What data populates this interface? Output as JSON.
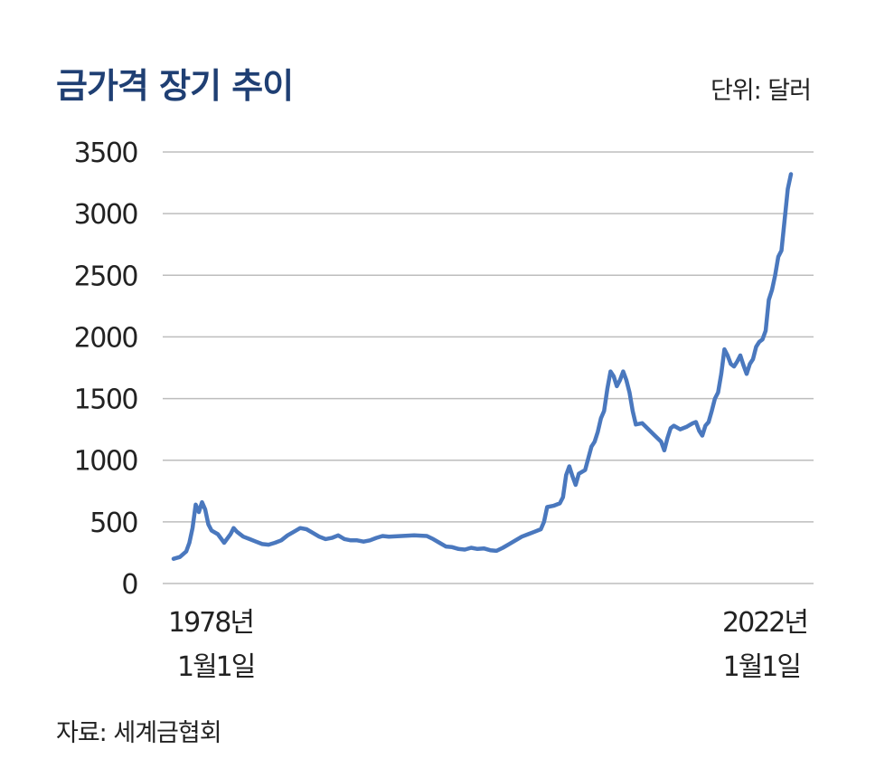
{
  "header": {
    "title": "금가격 장기 추이",
    "unit": "단위: 달러"
  },
  "footer": {
    "source": "자료: 세계금협회"
  },
  "chart_data": {
    "type": "line",
    "title": "금가격 장기 추이",
    "ylim": [
      0,
      3500
    ],
    "yticks": [
      0,
      500,
      1000,
      1500,
      2000,
      2500,
      3000,
      3500
    ],
    "grid": true,
    "x_labels": {
      "start": [
        "1978년",
        "1월1일"
      ],
      "end": [
        "2022년",
        "1월1일"
      ]
    },
    "series": [
      {
        "color": "#4a78be",
        "points": [
          [
            0.0,
            200
          ],
          [
            0.01,
            215
          ],
          [
            0.02,
            260
          ],
          [
            0.025,
            330
          ],
          [
            0.03,
            450
          ],
          [
            0.035,
            640
          ],
          [
            0.04,
            580
          ],
          [
            0.045,
            660
          ],
          [
            0.05,
            600
          ],
          [
            0.055,
            480
          ],
          [
            0.06,
            430
          ],
          [
            0.07,
            400
          ],
          [
            0.08,
            330
          ],
          [
            0.09,
            400
          ],
          [
            0.095,
            450
          ],
          [
            0.1,
            420
          ],
          [
            0.11,
            380
          ],
          [
            0.12,
            360
          ],
          [
            0.13,
            340
          ],
          [
            0.14,
            320
          ],
          [
            0.15,
            315
          ],
          [
            0.16,
            330
          ],
          [
            0.17,
            350
          ],
          [
            0.18,
            390
          ],
          [
            0.19,
            420
          ],
          [
            0.2,
            450
          ],
          [
            0.21,
            440
          ],
          [
            0.22,
            410
          ],
          [
            0.23,
            380
          ],
          [
            0.24,
            360
          ],
          [
            0.25,
            370
          ],
          [
            0.26,
            390
          ],
          [
            0.27,
            360
          ],
          [
            0.28,
            350
          ],
          [
            0.29,
            350
          ],
          [
            0.3,
            340
          ],
          [
            0.31,
            350
          ],
          [
            0.32,
            370
          ],
          [
            0.33,
            385
          ],
          [
            0.34,
            380
          ],
          [
            0.36,
            385
          ],
          [
            0.38,
            390
          ],
          [
            0.4,
            385
          ],
          [
            0.41,
            360
          ],
          [
            0.42,
            330
          ],
          [
            0.43,
            300
          ],
          [
            0.44,
            295
          ],
          [
            0.45,
            280
          ],
          [
            0.46,
            275
          ],
          [
            0.47,
            290
          ],
          [
            0.48,
            280
          ],
          [
            0.49,
            285
          ],
          [
            0.5,
            270
          ],
          [
            0.51,
            265
          ],
          [
            0.52,
            290
          ],
          [
            0.53,
            320
          ],
          [
            0.54,
            350
          ],
          [
            0.55,
            380
          ],
          [
            0.56,
            400
          ],
          [
            0.57,
            420
          ],
          [
            0.58,
            440
          ],
          [
            0.585,
            500
          ],
          [
            0.59,
            620
          ],
          [
            0.6,
            630
          ],
          [
            0.61,
            650
          ],
          [
            0.615,
            700
          ],
          [
            0.62,
            880
          ],
          [
            0.625,
            950
          ],
          [
            0.63,
            870
          ],
          [
            0.635,
            800
          ],
          [
            0.64,
            890
          ],
          [
            0.65,
            920
          ],
          [
            0.66,
            1110
          ],
          [
            0.665,
            1150
          ],
          [
            0.67,
            1230
          ],
          [
            0.675,
            1340
          ],
          [
            0.68,
            1400
          ],
          [
            0.685,
            1580
          ],
          [
            0.69,
            1720
          ],
          [
            0.695,
            1680
          ],
          [
            0.7,
            1600
          ],
          [
            0.705,
            1650
          ],
          [
            0.71,
            1720
          ],
          [
            0.715,
            1650
          ],
          [
            0.72,
            1550
          ],
          [
            0.725,
            1400
          ],
          [
            0.73,
            1290
          ],
          [
            0.74,
            1300
          ],
          [
            0.75,
            1250
          ],
          [
            0.76,
            1200
          ],
          [
            0.77,
            1150
          ],
          [
            0.775,
            1080
          ],
          [
            0.78,
            1180
          ],
          [
            0.785,
            1260
          ],
          [
            0.79,
            1280
          ],
          [
            0.8,
            1250
          ],
          [
            0.81,
            1270
          ],
          [
            0.82,
            1300
          ],
          [
            0.825,
            1310
          ],
          [
            0.83,
            1240
          ],
          [
            0.835,
            1200
          ],
          [
            0.84,
            1280
          ],
          [
            0.845,
            1310
          ],
          [
            0.85,
            1400
          ],
          [
            0.855,
            1500
          ],
          [
            0.86,
            1550
          ],
          [
            0.865,
            1700
          ],
          [
            0.87,
            1900
          ],
          [
            0.875,
            1850
          ],
          [
            0.88,
            1780
          ],
          [
            0.885,
            1760
          ],
          [
            0.89,
            1800
          ],
          [
            0.895,
            1850
          ],
          [
            0.9,
            1770
          ],
          [
            0.905,
            1700
          ],
          [
            0.91,
            1780
          ],
          [
            0.915,
            1820
          ],
          [
            0.92,
            1920
          ],
          [
            0.925,
            1960
          ],
          [
            0.93,
            1980
          ],
          [
            0.935,
            2050
          ],
          [
            0.94,
            2300
          ],
          [
            0.945,
            2380
          ],
          [
            0.95,
            2500
          ],
          [
            0.955,
            2650
          ],
          [
            0.96,
            2700
          ],
          [
            0.965,
            2950
          ],
          [
            0.97,
            3200
          ],
          [
            0.975,
            3320
          ]
        ]
      }
    ]
  }
}
